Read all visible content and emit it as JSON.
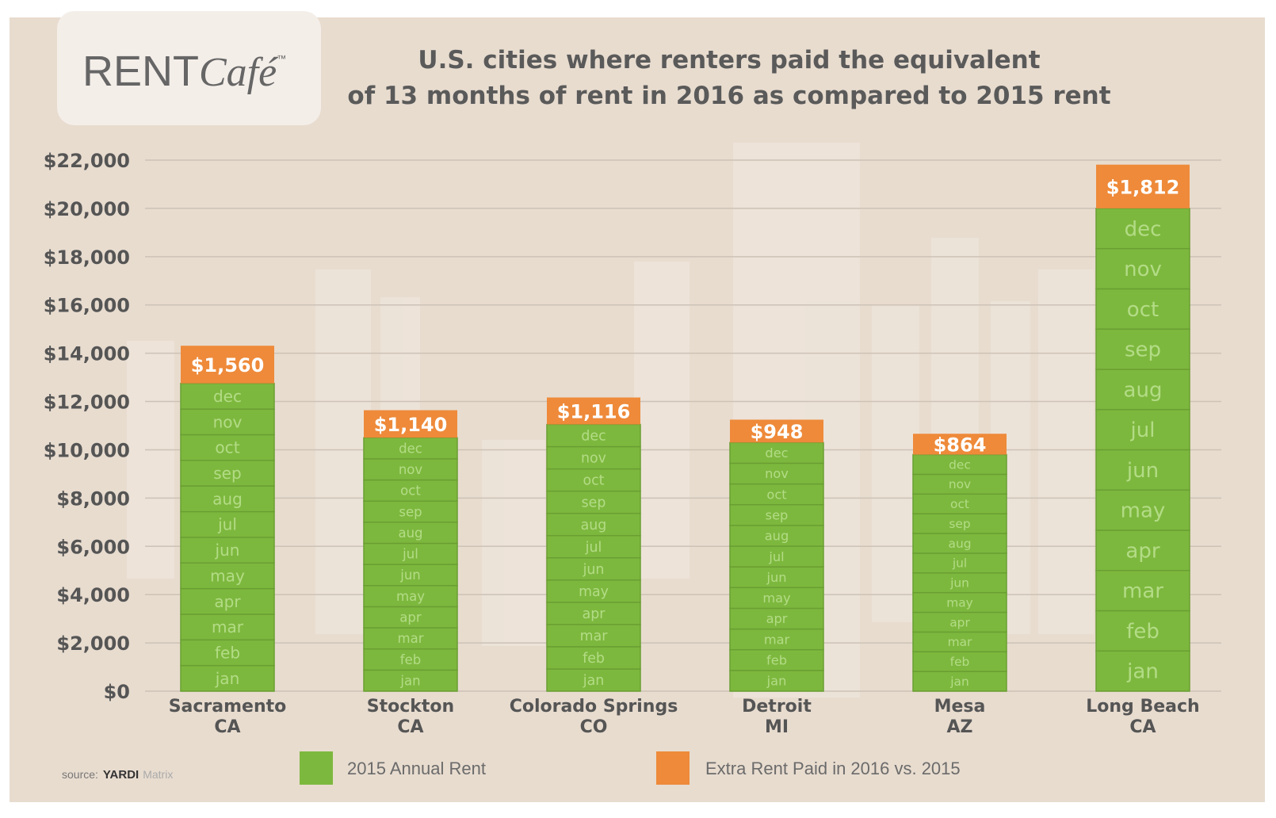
{
  "logo": {
    "text": "RENTCafé™",
    "part1": "RENT",
    "part2": "Café",
    "tm": "™"
  },
  "source": {
    "label": "source:",
    "brand": "YARDI",
    "brand2": "Matrix"
  },
  "colors": {
    "background": "#e8dccf",
    "green": "#7db83e",
    "orange": "#ee8a3a",
    "month_text": "#b3dc86",
    "grid": "#cdc2b6"
  },
  "chart_data": {
    "type": "bar",
    "stacked": true,
    "title": "U.S. cities where renters paid the equivalent of 13 months of rent in 2016 as compared to 2015 rent",
    "title_lines": [
      "U.S. cities where renters paid the equivalent",
      "of 13 months of rent in 2016 as compared to 2015 rent"
    ],
    "categories": [
      [
        "Sacramento",
        "CA"
      ],
      [
        "Stockton",
        "CA"
      ],
      [
        "Colorado Springs",
        "CO"
      ],
      [
        "Detroit",
        "MI"
      ],
      [
        "Mesa",
        "AZ"
      ],
      [
        "Long Beach",
        "CA"
      ]
    ],
    "months": [
      "jan",
      "feb",
      "mar",
      "apr",
      "may",
      "jun",
      "jul",
      "aug",
      "sep",
      "oct",
      "nov",
      "dec"
    ],
    "series": [
      {
        "name": "2015 Annual Rent",
        "color": "#7db83e",
        "values": [
          12750,
          10500,
          11050,
          10300,
          9800,
          20000
        ]
      },
      {
        "name": "Extra Rent Paid in 2016 vs. 2015",
        "color": "#ee8a3a",
        "values": [
          1560,
          1140,
          1116,
          948,
          864,
          1812
        ],
        "labels": [
          "$1,560",
          "$1,140",
          "$1,116",
          "$948",
          "$864",
          "$1,812"
        ]
      }
    ],
    "ylim": [
      0,
      22000
    ],
    "yticks": [
      0,
      2000,
      4000,
      6000,
      8000,
      10000,
      12000,
      14000,
      16000,
      18000,
      20000,
      22000
    ],
    "ytick_labels": [
      "$0",
      "$2,000",
      "$4,000",
      "$6,000",
      "$8,000",
      "$10,000",
      "$12,000",
      "$14,000",
      "$16,000",
      "$18,000",
      "$20,000",
      "$22,000"
    ],
    "grid": true,
    "legend_placement": "bottom"
  }
}
